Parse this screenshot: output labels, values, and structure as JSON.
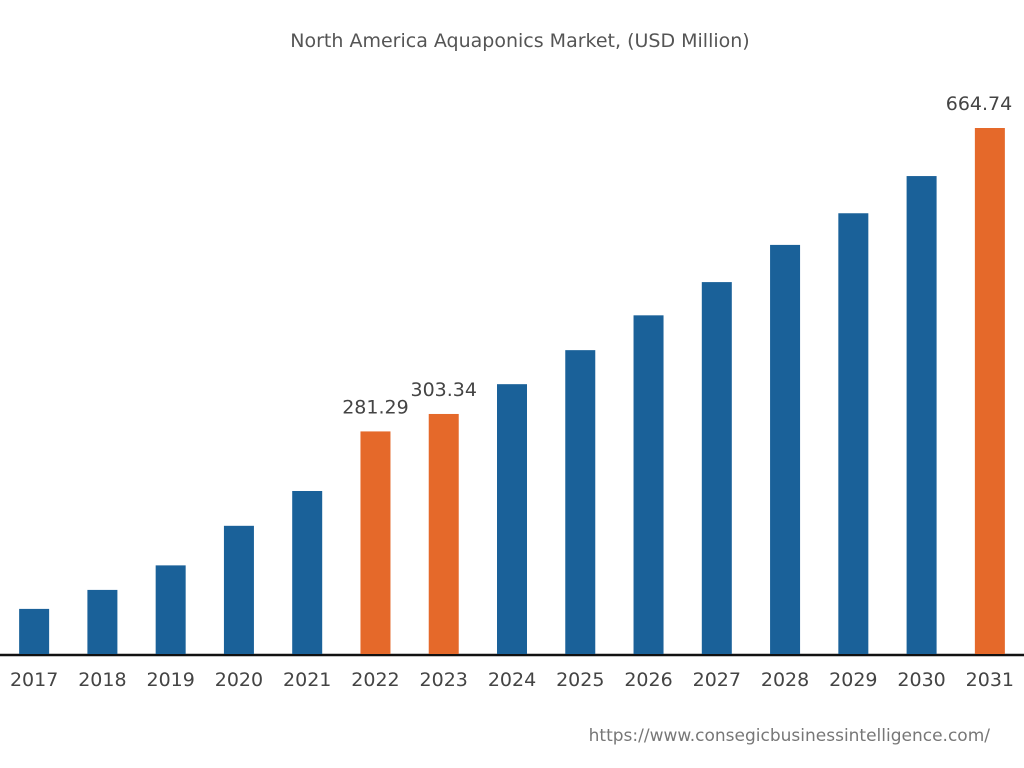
{
  "chart_data": {
    "type": "bar",
    "title": "North America Aquaponics Market, (USD Million)",
    "categories": [
      "2017",
      "2018",
      "2019",
      "2020",
      "2021",
      "2022",
      "2023",
      "2024",
      "2025",
      "2026",
      "2027",
      "2028",
      "2029",
      "2030",
      "2031"
    ],
    "values": [
      57,
      81,
      112,
      162,
      206,
      281.29,
      303.34,
      341,
      384,
      428,
      470,
      517,
      557,
      604,
      664.74
    ],
    "colors": [
      "#1a6199",
      "#1a6199",
      "#1a6199",
      "#1a6199",
      "#1a6199",
      "#e5692a",
      "#e5692a",
      "#1a6199",
      "#1a6199",
      "#1a6199",
      "#1a6199",
      "#1a6199",
      "#1a6199",
      "#1a6199",
      "#e5692a"
    ],
    "source": "https://www.consegicbusinessintelligence.com/"
  }
}
